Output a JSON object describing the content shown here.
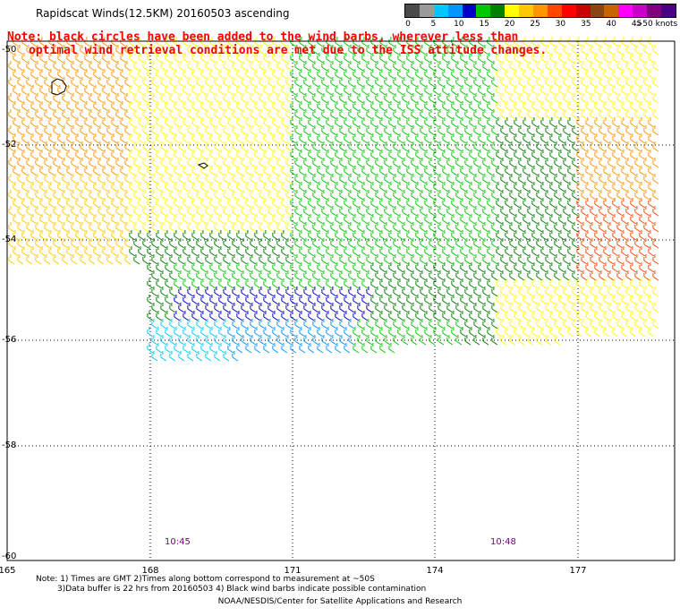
{
  "title": "Rapidscat Winds(12.5KM) 20160503 ascending",
  "legend": {
    "colors": [
      "#4a4a4a",
      "#9a9a9a",
      "#00c8ff",
      "#0096ff",
      "#0000c8",
      "#00c800",
      "#008000",
      "#ffff00",
      "#ffc800",
      "#ff9600",
      "#ff4800",
      "#ff0000",
      "#c80000",
      "#8b4513",
      "#c86400",
      "#ff00ff",
      "#c800c8",
      "#800080",
      "#4b0082"
    ],
    "labels": [
      "0",
      "5",
      "10",
      "15",
      "20",
      "25",
      "30",
      "35",
      "40",
      "45",
      ">50 knots"
    ]
  },
  "note_red": [
    "Note: black circles have been added to the wind barbs, wherever less than",
    "optimal wind retrieval conditions are met due to the ISS attitude changes."
  ],
  "lat_labels": [
    "-50",
    "-52",
    "-54",
    "-56",
    "-58",
    "-60"
  ],
  "lon_labels": [
    "165",
    "168",
    "171",
    "174",
    "177"
  ],
  "time_labels": [
    "10:45",
    "10:48"
  ],
  "bottom_notes": [
    "Note: 1) Times are GMT 2)Times along bottom correspond to measurement at ~50S",
    "3)Data buffer is 22 hrs from 20160503 4) Black wind barbs indicate possible contamination"
  ],
  "credit": "NOAA/NESDIS/Center for Satellite Applications and Research"
}
